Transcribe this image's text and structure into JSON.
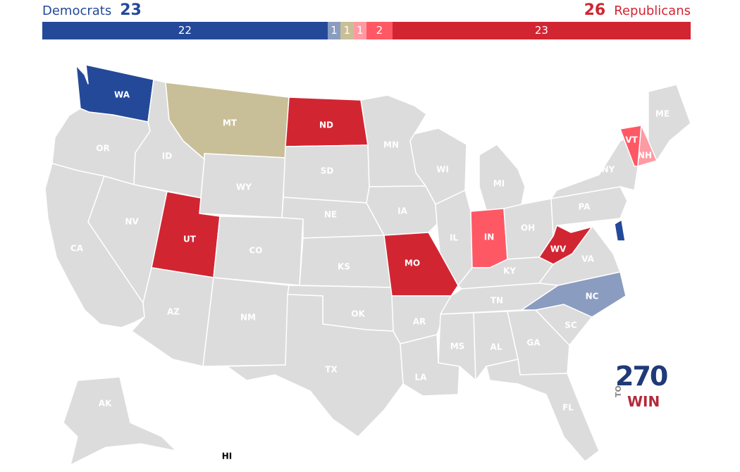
{
  "header": {
    "dem_label": "Democrats",
    "dem_total": "23",
    "rep_label": "Republicans",
    "rep_total": "26"
  },
  "bar": [
    {
      "label": "22",
      "count": 22,
      "color": "#244999"
    },
    {
      "label": "1",
      "count": 1,
      "color": "#8a9cbf"
    },
    {
      "label": "1",
      "count": 1,
      "color": "#c8bf98"
    },
    {
      "label": "1",
      "count": 1,
      "color": "#ff9aa2"
    },
    {
      "label": "2",
      "count": 2,
      "color": "#ff5865"
    },
    {
      "label": "23",
      "count": 23,
      "color": "#d22532"
    }
  ],
  "colors": {
    "no_race": "#dcdcdc",
    "safe_dem": "#244999",
    "tossup_dem_lean": "#8a9cbf",
    "independent": "#c8bf98",
    "tilt_rep": "#ff9aa2",
    "likely_rep": "#ff5865",
    "safe_rep": "#d22532"
  },
  "states": {
    "WA": {
      "label": "WA",
      "color": "#244999"
    },
    "OR": {
      "label": "OR",
      "color": "#dcdcdc"
    },
    "CA": {
      "label": "CA",
      "color": "#dcdcdc"
    },
    "ID": {
      "label": "ID",
      "color": "#dcdcdc"
    },
    "NV": {
      "label": "NV",
      "color": "#dcdcdc"
    },
    "MT": {
      "label": "MT",
      "color": "#c8bf98"
    },
    "WY": {
      "label": "WY",
      "color": "#dcdcdc"
    },
    "UT": {
      "label": "UT",
      "color": "#d22532"
    },
    "AZ": {
      "label": "AZ",
      "color": "#dcdcdc"
    },
    "CO": {
      "label": "CO",
      "color": "#dcdcdc"
    },
    "NM": {
      "label": "NM",
      "color": "#dcdcdc"
    },
    "ND": {
      "label": "ND",
      "color": "#d22532"
    },
    "SD": {
      "label": "SD",
      "color": "#dcdcdc"
    },
    "NE": {
      "label": "NE",
      "color": "#dcdcdc"
    },
    "KS": {
      "label": "KS",
      "color": "#dcdcdc"
    },
    "OK": {
      "label": "OK",
      "color": "#dcdcdc"
    },
    "TX": {
      "label": "TX",
      "color": "#dcdcdc"
    },
    "MN": {
      "label": "MN",
      "color": "#dcdcdc"
    },
    "IA": {
      "label": "IA",
      "color": "#dcdcdc"
    },
    "MO": {
      "label": "MO",
      "color": "#d22532"
    },
    "AR": {
      "label": "AR",
      "color": "#dcdcdc"
    },
    "LA": {
      "label": "LA",
      "color": "#dcdcdc"
    },
    "WI": {
      "label": "WI",
      "color": "#dcdcdc"
    },
    "IL": {
      "label": "IL",
      "color": "#dcdcdc"
    },
    "MI": {
      "label": "MI",
      "color": "#dcdcdc"
    },
    "IN": {
      "label": "IN",
      "color": "#ff5865"
    },
    "OH": {
      "label": "OH",
      "color": "#dcdcdc"
    },
    "KY": {
      "label": "KY",
      "color": "#dcdcdc"
    },
    "TN": {
      "label": "TN",
      "color": "#dcdcdc"
    },
    "MS": {
      "label": "MS",
      "color": "#dcdcdc"
    },
    "AL": {
      "label": "AL",
      "color": "#dcdcdc"
    },
    "GA": {
      "label": "GA",
      "color": "#dcdcdc"
    },
    "FL": {
      "label": "FL",
      "color": "#dcdcdc"
    },
    "SC": {
      "label": "SC",
      "color": "#dcdcdc"
    },
    "NC": {
      "label": "NC",
      "color": "#8a9cbf"
    },
    "VA": {
      "label": "VA",
      "color": "#dcdcdc"
    },
    "WV": {
      "label": "WV",
      "color": "#d22532"
    },
    "PA": {
      "label": "PA",
      "color": "#dcdcdc"
    },
    "NY": {
      "label": "NY",
      "color": "#dcdcdc"
    },
    "VT": {
      "label": "VT",
      "color": "#ff5865"
    },
    "NH": {
      "label": "NH",
      "color": "#ff9aa2"
    },
    "ME": {
      "label": "ME",
      "color": "#dcdcdc"
    },
    "DE": {
      "label": "",
      "color": "#244999"
    },
    "AK": {
      "label": "AK",
      "color": "#dcdcdc"
    },
    "HI": {
      "label": "HI",
      "color": "#dcdcdc"
    }
  },
  "logo": {
    "number": "270",
    "to": "TO",
    "win": "WIN"
  }
}
